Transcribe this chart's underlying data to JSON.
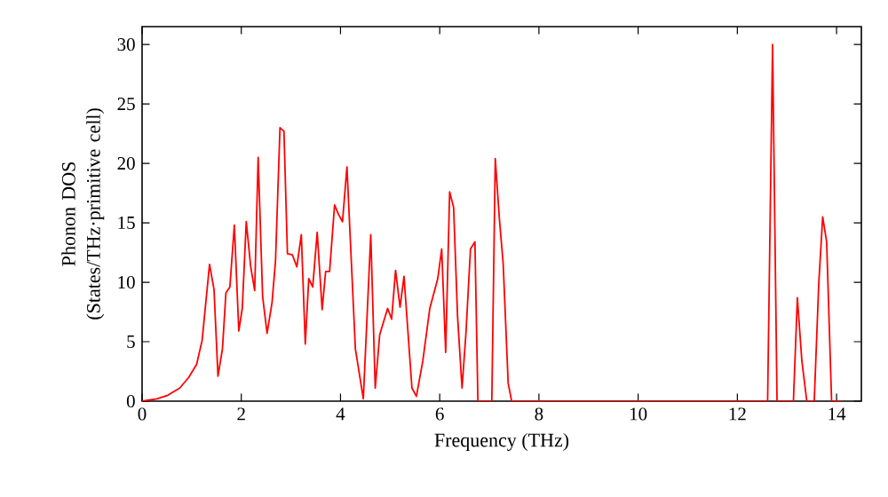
{
  "chart_data": {
    "type": "line",
    "xlabel": "Frequency (THz)",
    "ylabel": "Phonon DOS (States/THz·primitive cell)",
    "xlim": [
      0,
      14.5
    ],
    "ylim": [
      0,
      31.5
    ],
    "xticks": [
      0,
      2,
      4,
      6,
      8,
      10,
      12,
      14
    ],
    "yticks": [
      0,
      5,
      10,
      15,
      20,
      25,
      30
    ],
    "grid": false,
    "marker": "none",
    "line_style": "solid",
    "series": [
      {
        "color": "#ff0000",
        "x": [
          0,
          0.3,
          0.52,
          0.76,
          0.94,
          1.1,
          1.21,
          1.36,
          1.45,
          1.53,
          1.62,
          1.69,
          1.77,
          1.86,
          1.95,
          2.02,
          2.1,
          2.19,
          2.27,
          2.34,
          2.43,
          2.52,
          2.62,
          2.69,
          2.78,
          2.86,
          2.93,
          3.03,
          3.12,
          3.21,
          3.29,
          3.36,
          3.44,
          3.53,
          3.63,
          3.7,
          3.78,
          3.88,
          3.96,
          4.04,
          4.13,
          4.3,
          4.46,
          4.61,
          4.7,
          4.79,
          4.95,
          5.03,
          5.11,
          5.2,
          5.28,
          5.36,
          5.44,
          5.53,
          5.66,
          5.8,
          5.96,
          6.04,
          6.12,
          6.2,
          6.28,
          6.36,
          6.45,
          6.53,
          6.62,
          6.71,
          6.77,
          7.05,
          7.12,
          7.2,
          7.28,
          7.38,
          7.45,
          12.61,
          12.71,
          12.8,
          13.13,
          13.21,
          13.3,
          13.4,
          13.55,
          13.64,
          13.72,
          13.8,
          13.9,
          14.1
        ],
        "values": [
          0,
          0.2,
          0.5,
          1.1,
          2,
          3.1,
          5.1,
          11.5,
          9.4,
          2.1,
          4.4,
          9.1,
          9.6,
          14.8,
          5.9,
          7.8,
          15.1,
          11.3,
          9.3,
          20.5,
          8.8,
          5.7,
          8.3,
          11.8,
          23.0,
          22.7,
          12.4,
          12.3,
          11.3,
          14.0,
          4.8,
          10.3,
          9.6,
          14.2,
          7.7,
          10.9,
          10.9,
          16.5,
          15.7,
          15.1,
          19.7,
          4.4,
          0.2,
          14.0,
          1.1,
          5.6,
          7.8,
          6.9,
          11.0,
          7.9,
          10.5,
          5.8,
          1.1,
          0.4,
          3.4,
          7.8,
          10.3,
          12.8,
          4.1,
          17.6,
          16.3,
          7.1,
          1.1,
          5.8,
          12.8,
          13.4,
          0,
          0,
          20.4,
          15.5,
          11.5,
          1.5,
          0,
          0,
          30,
          0,
          0,
          8.7,
          3.4,
          0,
          0,
          9.8,
          15.5,
          13.4,
          0,
          0
        ]
      }
    ]
  }
}
